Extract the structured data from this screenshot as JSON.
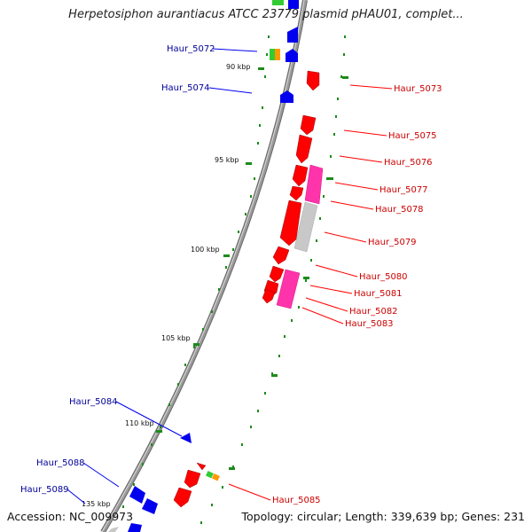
{
  "title": "Herpetosiphon aurantiacus ATCC 23779 plasmid pHAU01, complet...",
  "accession": "Accession: NC_009973",
  "summary": "Topology: circular; Length: 339,639 bp; Genes: 231",
  "colors": {
    "backbone": "#9a9a9a",
    "forward_gene": "#ff0000",
    "reverse_gene": "#0000ee",
    "forward_label": "#cc0000",
    "reverse_label": "#000099",
    "rna_gene": "#ff33aa",
    "pseudo_gene": "#c8c8c8",
    "tick": "#1a8c1a"
  },
  "scale_labels": [
    "90 kbp",
    "95 kbp",
    "100 kbp",
    "105 kbp",
    "110 kbp",
    "135 kbp"
  ],
  "gene_labels": [
    {
      "text": "Haur_5072",
      "strand": "reverse"
    },
    {
      "text": "Haur_5073",
      "strand": "forward"
    },
    {
      "text": "Haur_5074",
      "strand": "reverse"
    },
    {
      "text": "Haur_5075",
      "strand": "forward"
    },
    {
      "text": "Haur_5076",
      "strand": "forward"
    },
    {
      "text": "Haur_5077",
      "strand": "forward"
    },
    {
      "text": "Haur_5078",
      "strand": "forward"
    },
    {
      "text": "Haur_5079",
      "strand": "forward"
    },
    {
      "text": "Haur_5080",
      "strand": "forward"
    },
    {
      "text": "Haur_5081",
      "strand": "forward"
    },
    {
      "text": "Haur_5082",
      "strand": "forward"
    },
    {
      "text": "Haur_5083",
      "strand": "forward"
    },
    {
      "text": "Haur_5084",
      "strand": "reverse"
    },
    {
      "text": "Haur_5085",
      "strand": "forward"
    },
    {
      "text": "Haur_5088",
      "strand": "reverse"
    },
    {
      "text": "Haur_5089",
      "strand": "reverse"
    }
  ]
}
